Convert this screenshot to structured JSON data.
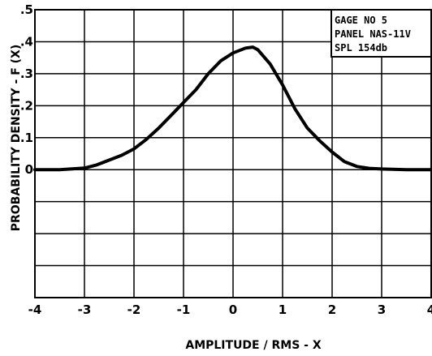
{
  "chart_data": {
    "type": "line",
    "title": "",
    "xlabel": "AMPLITUDE / RMS - X",
    "ylabel": "PROBABILITY DENSITY - F (X)",
    "xlim": [
      -4,
      4
    ],
    "ylim": [
      -0.4,
      0.5
    ],
    "grid": true,
    "x_ticks": [
      "-4",
      "-3",
      "-2",
      "-1",
      "0",
      "1",
      "2",
      "3",
      "4"
    ],
    "y_ticks": [
      "0",
      ".1",
      ".2",
      ".3",
      ".4",
      ".5"
    ],
    "legend_box": [
      "GAGE NO 5",
      "PANEL NAS-11V",
      "SPL 154db"
    ],
    "series": [
      {
        "x": [
          -4,
          -3.5,
          -3,
          -2.75,
          -2.5,
          -2.25,
          -2,
          -1.75,
          -1.5,
          -1.25,
          -1,
          -0.75,
          -0.5,
          -0.25,
          0,
          0.25,
          0.4,
          0.5,
          0.75,
          1,
          1.25,
          1.5,
          1.75,
          2,
          2.25,
          2.5,
          2.75,
          3,
          3.5,
          4
        ],
        "y": [
          0,
          0,
          0.005,
          0.015,
          0.03,
          0.045,
          0.065,
          0.095,
          0.13,
          0.17,
          0.21,
          0.25,
          0.3,
          0.34,
          0.365,
          0.38,
          0.383,
          0.375,
          0.33,
          0.265,
          0.19,
          0.13,
          0.09,
          0.055,
          0.025,
          0.01,
          0.004,
          0.002,
          0,
          0
        ]
      }
    ]
  }
}
